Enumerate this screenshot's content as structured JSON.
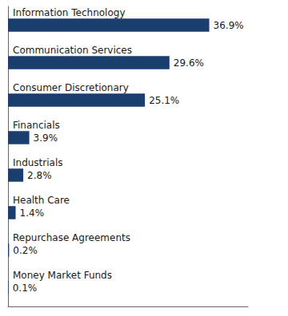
{
  "chart_data": {
    "type": "bar",
    "orientation": "horizontal",
    "categories": [
      "Information Technology",
      "Communication Services",
      "Consumer Discretionary",
      "Financials",
      "Industrials",
      "Health Care",
      "Repurchase Agreements",
      "Money Market Funds"
    ],
    "values": [
      36.9,
      29.6,
      25.1,
      3.9,
      2.8,
      1.4,
      0.2,
      0.1
    ],
    "value_labels": [
      "36.9%",
      "29.6%",
      "25.1%",
      "3.9%",
      "2.8%",
      "1.4%",
      "0.2%",
      "0.1%"
    ],
    "data_labels": true,
    "color": "#1a3f6f",
    "xlim": [
      0,
      44
    ],
    "tick_labels": false,
    "grid": false
  }
}
